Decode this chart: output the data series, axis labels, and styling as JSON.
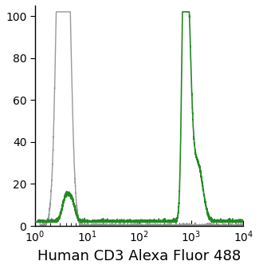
{
  "xlabel": "Human CD3 Alexa Fluor 488",
  "ylabel": "",
  "xlim": [
    1.0,
    10000.0
  ],
  "ylim": [
    0,
    105
  ],
  "yticks": [
    0,
    20,
    40,
    60,
    80,
    100
  ],
  "gray_color": "#999999",
  "green_color": "#228B22",
  "background_color": "#ffffff",
  "xlabel_fontsize": 13,
  "tick_fontsize": 10
}
